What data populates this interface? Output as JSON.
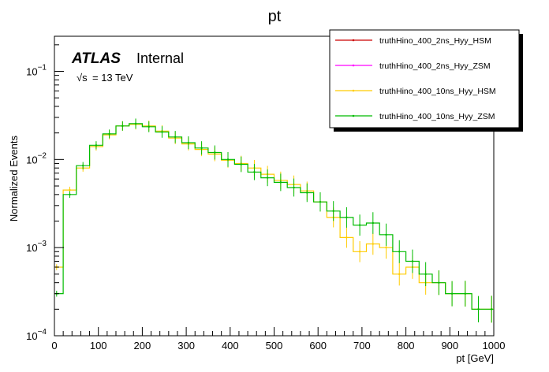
{
  "chart_data": {
    "type": "line",
    "title": "pt",
    "xlabel": "pt [GeV]",
    "ylabel": "Normalized Events",
    "xlim": [
      0,
      1000
    ],
    "ylim": [
      0.0001,
      0.25
    ],
    "yscale": "log",
    "grid": false,
    "legend_position": "top-right",
    "x_ticks": [
      0,
      100,
      200,
      300,
      400,
      500,
      600,
      700,
      800,
      900,
      1000
    ],
    "x_tick_labels": [
      "0",
      "100",
      "200",
      "300",
      "400",
      "500",
      "600",
      "700",
      "800",
      "900",
      "1000"
    ],
    "y_ticks": [
      0.0001,
      0.001,
      0.01,
      0.1
    ],
    "y_tick_labels": [
      {
        "base": "10",
        "exp": "−4"
      },
      {
        "base": "10",
        "exp": "−3"
      },
      {
        "base": "10",
        "exp": "−2"
      },
      {
        "base": "10",
        "exp": "−1"
      }
    ],
    "annotations": {
      "experiment": "ATLAS",
      "status": "Internal",
      "energy_prefix": "√s",
      "energy_value": "= 13 TeV"
    },
    "x": [
      5,
      35,
      65,
      95,
      125,
      155,
      185,
      215,
      245,
      275,
      305,
      335,
      365,
      395,
      425,
      455,
      485,
      515,
      545,
      575,
      605,
      635,
      665,
      695,
      725,
      755,
      785,
      815,
      845,
      875,
      905,
      935,
      965,
      995
    ],
    "series": [
      {
        "name": "truthHino_400_2ns_Hyy_HSM",
        "color": "#cc0000",
        "values": null
      },
      {
        "name": "truthHino_400_2ns_Hyy_ZSM",
        "color": "#ff00ff",
        "values": null
      },
      {
        "name": "truthHino_400_10ns_Hyy_HSM",
        "color": "#ffcc00",
        "values": [
          0.0006,
          0.0045,
          0.008,
          0.014,
          0.019,
          0.024,
          0.025,
          0.024,
          0.021,
          0.0175,
          0.015,
          0.013,
          0.0115,
          0.0098,
          0.009,
          0.008,
          0.0068,
          0.0058,
          0.0052,
          0.0044,
          0.0033,
          0.0022,
          0.0013,
          0.0009,
          0.0011,
          0.001,
          0.0005,
          0.0006,
          0.0004,
          0.0004,
          0.0003,
          0.0003,
          0.0002,
          0.0002
        ]
      },
      {
        "name": "truthHino_400_10ns_Hyy_ZSM",
        "color": "#00bb00",
        "values": [
          0.0003,
          0.004,
          0.0085,
          0.0145,
          0.0195,
          0.024,
          0.0255,
          0.0235,
          0.0205,
          0.018,
          0.0155,
          0.0135,
          0.012,
          0.01,
          0.0088,
          0.0072,
          0.0062,
          0.0055,
          0.0048,
          0.0042,
          0.0033,
          0.0026,
          0.0022,
          0.0018,
          0.0019,
          0.0014,
          0.0009,
          0.0007,
          0.0005,
          0.0004,
          0.0003,
          0.0003,
          0.0002,
          0.0002
        ]
      }
    ]
  }
}
